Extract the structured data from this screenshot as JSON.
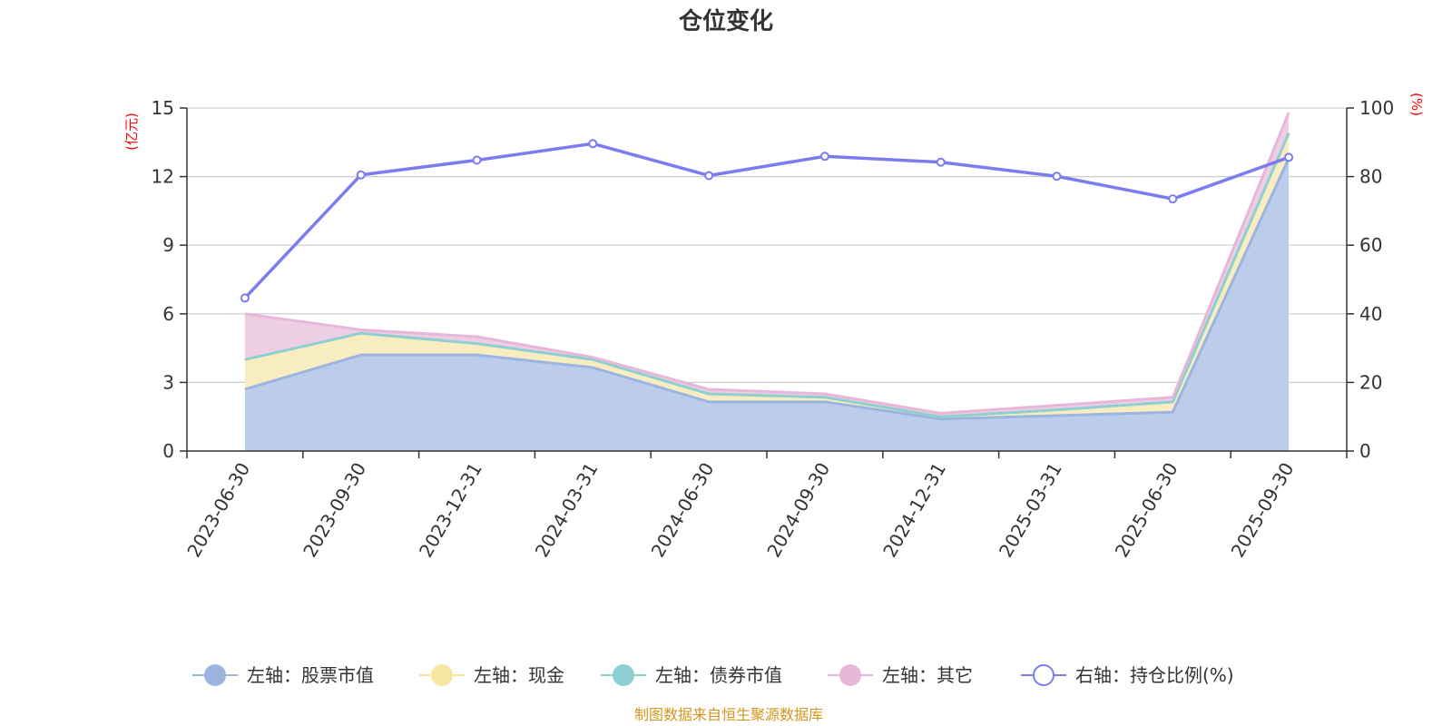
{
  "chart_data": {
    "type": "area",
    "title": "仓位变化",
    "left_axis_unit": "(亿元)",
    "right_axis_unit": "(%)",
    "categories": [
      "2023-06-30",
      "2023-09-30",
      "2023-12-31",
      "2024-03-31",
      "2024-06-30",
      "2024-09-30",
      "2024-12-31",
      "2025-03-31",
      "2025-06-30",
      "2025-09-30"
    ],
    "ylim_left": [
      0,
      15
    ],
    "yticks_left": [
      "0",
      "3",
      "6",
      "9",
      "12",
      "15"
    ],
    "ylim_right": [
      0,
      100
    ],
    "yticks_right": [
      "0",
      "20",
      "40",
      "60",
      "80",
      "100"
    ],
    "grid": true,
    "legend_position": "bottom",
    "stacked_series": [
      {
        "name": "左轴：股票市值",
        "axis": "left",
        "color": "#9bb5e0",
        "fill": "#b7cae9",
        "values": [
          2.7,
          4.2,
          4.2,
          3.65,
          2.15,
          2.15,
          1.4,
          1.55,
          1.7,
          12.8
        ]
      },
      {
        "name": "左轴：现金",
        "axis": "left",
        "color": "#f7e6a0",
        "fill": "#f8ebbe",
        "values": [
          1.3,
          0.95,
          0.5,
          0.35,
          0.35,
          0.2,
          0.1,
          0.25,
          0.45,
          1.1
        ]
      },
      {
        "name": "左轴：债券市值",
        "axis": "left",
        "color": "#8ecfd3",
        "fill": "#b4e0e2",
        "values": [
          0,
          0,
          0,
          0,
          0,
          0,
          0,
          0,
          0,
          0
        ]
      },
      {
        "name": "左轴：其它",
        "axis": "left",
        "color": "#e7b7da",
        "fill": "#eccbe3",
        "values": [
          2.0,
          0.15,
          0.3,
          0.1,
          0.2,
          0.15,
          0.15,
          0.2,
          0.2,
          0.9
        ]
      }
    ],
    "line_series": {
      "name": "右轴：持仓比例(%)",
      "axis": "right",
      "color": "#7b7def",
      "values": [
        44.6,
        80.5,
        84.8,
        89.6,
        80.3,
        85.9,
        84.2,
        80.1,
        73.5,
        85.6
      ]
    },
    "source_note": "制图数据来自恒生聚源数据库"
  }
}
